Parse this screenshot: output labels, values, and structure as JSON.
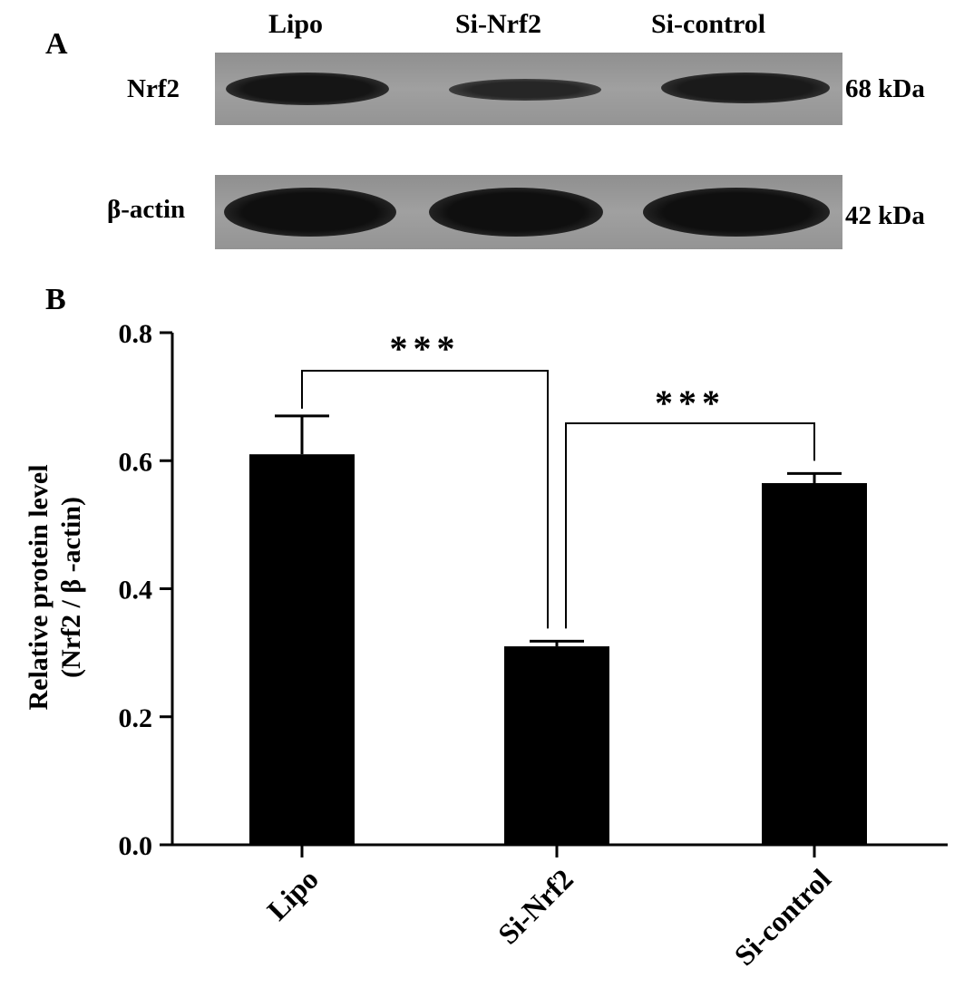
{
  "panel_a": {
    "letter": "A",
    "lanes": [
      "Lipo",
      "Si-Nrf2",
      "Si-control"
    ],
    "rows": [
      {
        "label": "Nrf2",
        "kda": "68 kDa"
      },
      {
        "label": "β-actin",
        "kda": "42 kDa"
      }
    ]
  },
  "panel_b": {
    "letter": "B"
  },
  "chart_data": {
    "type": "bar",
    "categories": [
      "Lipo",
      "Si-Nrf2",
      "Si-control"
    ],
    "values": [
      0.61,
      0.31,
      0.565
    ],
    "errors": [
      0.06,
      0.008,
      0.015
    ],
    "ylabel_line1": "Relative protein level",
    "ylabel_line2": "(Nrf2 / β -actin)",
    "xlabel": "",
    "ylim": [
      0,
      0.8
    ],
    "yticks": [
      "0.0",
      "0.2",
      "0.4",
      "0.6",
      "0.8"
    ],
    "bar_color": "#000000",
    "significance": [
      {
        "from": "Lipo",
        "to": "Si-Nrf2",
        "label": "***"
      },
      {
        "from": "Si-Nrf2",
        "to": "Si-control",
        "label": "***"
      }
    ]
  }
}
